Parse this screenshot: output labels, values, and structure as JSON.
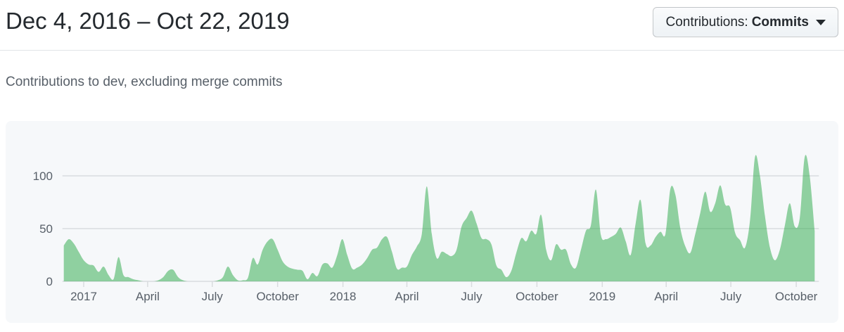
{
  "header": {
    "title": "Dec 4, 2016 – Oct 22, 2019",
    "filter_button": {
      "label": "Contributions:",
      "value": "Commits",
      "caret_icon": "dropdown-caret"
    }
  },
  "subtitle": "Contributions to dev, excluding merge commits",
  "chart_data": {
    "type": "area",
    "title": "Contributions to dev, excluding merge commits",
    "x_unit": "week",
    "x_start": "2016-12-04",
    "x_end": "2019-10-22",
    "values": [
      34,
      40,
      36,
      28,
      20,
      16,
      15,
      9,
      14,
      6,
      2,
      23,
      6,
      4,
      2,
      1,
      0,
      0,
      0,
      1,
      4,
      10,
      11,
      4,
      1,
      0,
      0,
      0,
      0,
      0,
      0,
      1,
      4,
      14,
      6,
      1,
      1,
      3,
      22,
      16,
      30,
      38,
      40,
      30,
      19,
      14,
      12,
      11,
      10,
      2,
      8,
      5,
      16,
      17,
      13,
      25,
      40,
      25,
      12,
      13,
      16,
      22,
      30,
      32,
      40,
      42,
      28,
      12,
      13,
      14,
      25,
      33,
      45,
      90,
      45,
      22,
      28,
      26,
      24,
      30,
      52,
      60,
      67,
      55,
      41,
      40,
      35,
      15,
      11,
      4,
      10,
      27,
      41,
      38,
      48,
      45,
      63,
      30,
      20,
      35,
      30,
      30,
      16,
      13,
      30,
      48,
      53,
      87,
      44,
      40,
      42,
      45,
      51,
      38,
      25,
      55,
      77,
      36,
      34,
      42,
      47,
      45,
      88,
      82,
      50,
      33,
      27,
      45,
      65,
      85,
      66,
      74,
      91,
      73,
      70,
      46,
      39,
      32,
      58,
      118,
      100,
      62,
      32,
      20,
      30,
      53,
      74,
      52,
      60,
      118,
      100,
      48
    ],
    "y_ticks": [
      0,
      50,
      100
    ],
    "ylim": [
      0,
      125
    ],
    "x_ticks": [
      {
        "label": "2017",
        "week": 4
      },
      {
        "label": "April",
        "week": 16.86
      },
      {
        "label": "July",
        "week": 29.86
      },
      {
        "label": "October",
        "week": 43
      },
      {
        "label": "2018",
        "week": 56.14
      },
      {
        "label": "April",
        "week": 69
      },
      {
        "label": "July",
        "week": 82
      },
      {
        "label": "October",
        "week": 95.14
      },
      {
        "label": "2019",
        "week": 108.29
      },
      {
        "label": "April",
        "week": 121.14
      },
      {
        "label": "July",
        "week": 134.14
      },
      {
        "label": "October",
        "week": 147.29
      }
    ],
    "grid": true,
    "legend": false,
    "colors": {
      "area_fill": "rgba(40,167,69,0.5)",
      "grid": "#d9dcdf",
      "axis_text": "#586069",
      "card_bg": "#f6f8fa",
      "title_text": "#24292e",
      "subtitle_text": "#586069"
    }
  }
}
